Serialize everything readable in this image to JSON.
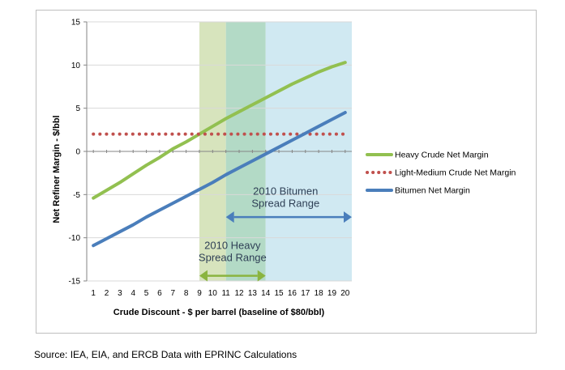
{
  "chart_data": {
    "type": "line",
    "xlabel": "Crude Discount - $ per barrel (baseline of $80/bbl)",
    "ylabel": "Net Refiner Margin - $/bbl",
    "xlim": [
      0.5,
      20.5
    ],
    "ylim": [
      -15,
      15
    ],
    "x_ticks": [
      1,
      2,
      3,
      4,
      5,
      6,
      7,
      8,
      9,
      10,
      11,
      12,
      13,
      14,
      15,
      16,
      17,
      18,
      19,
      20
    ],
    "y_ticks": [
      15,
      10,
      5,
      0,
      -5,
      -10,
      -15
    ],
    "x": [
      1,
      2,
      3,
      4,
      5,
      6,
      7,
      8,
      9,
      10,
      11,
      12,
      13,
      14,
      15,
      16,
      17,
      18,
      19,
      20
    ],
    "series": [
      {
        "name": "Heavy Crude Net Margin",
        "color": "#92c050",
        "style": "solid",
        "values": [
          -5.4,
          -4.5,
          -3.6,
          -2.6,
          -1.6,
          -0.7,
          0.3,
          1.1,
          2.0,
          2.9,
          3.8,
          4.6,
          5.4,
          6.2,
          7.0,
          7.8,
          8.5,
          9.2,
          9.8,
          10.3
        ]
      },
      {
        "name": "Light-Medium Crude Net Margin",
        "color": "#c0504d",
        "style": "dotted",
        "values": [
          2,
          2,
          2,
          2,
          2,
          2,
          2,
          2,
          2,
          2,
          2,
          2,
          2,
          2,
          2,
          2,
          2,
          2,
          2,
          2
        ]
      },
      {
        "name": "Bitumen Net Margin",
        "color": "#4a7ebb",
        "style": "solid",
        "values": [
          -10.9,
          -10.1,
          -9.3,
          -8.5,
          -7.6,
          -6.8,
          -6.0,
          -5.2,
          -4.4,
          -3.6,
          -2.7,
          -1.9,
          -1.1,
          -0.3,
          0.5,
          1.3,
          2.1,
          2.9,
          3.7,
          4.5
        ]
      }
    ],
    "legend_position": "right",
    "bands": [
      {
        "from": 9,
        "to": 11,
        "color": "#d7e4bd",
        "note": "2010 Heavy Spread Range"
      },
      {
        "from": 11,
        "to": 14,
        "color": "#b3dac6",
        "note": "overlap"
      },
      {
        "from": 14,
        "to": 20.5,
        "color": "#d0e9f2",
        "note": "2010 Bitumen Spread Range"
      }
    ],
    "annotations": [
      {
        "id": "bitumen",
        "lines": [
          "2010 Bitumen",
          "Spread Range"
        ],
        "x": 15.5,
        "y": -5,
        "color": "#2e3f55"
      },
      {
        "id": "heavy",
        "lines": [
          "2010 Heavy",
          "Spread Range"
        ],
        "x": 11.5,
        "y": -11.3,
        "color": "#2e3f55"
      }
    ],
    "arrows": [
      {
        "id": "bitumen",
        "from": 11,
        "to": 20.5,
        "y": -7.6,
        "color": "#4a7ebb"
      },
      {
        "id": "heavy",
        "from": 9,
        "to": 14,
        "y": -14.4,
        "color": "#8ab43f"
      }
    ]
  },
  "footer": {
    "source": "Source: IEA, EIA, and ERCB Data with EPRINC Calculations"
  }
}
